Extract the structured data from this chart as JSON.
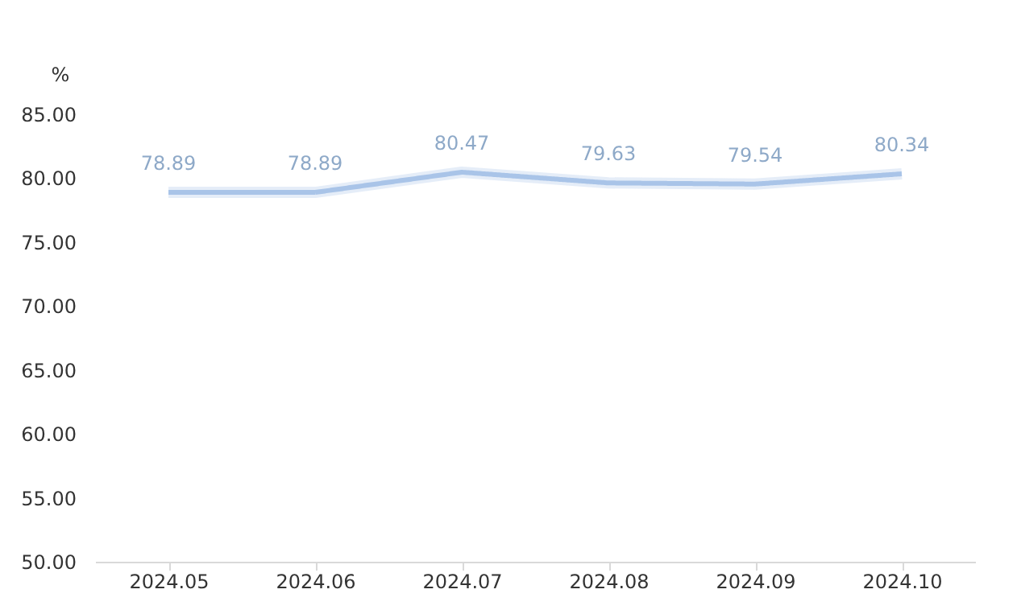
{
  "chart_data": {
    "type": "line",
    "ylabel": "%",
    "categories": [
      "2024.05",
      "2024.06",
      "2024.07",
      "2024.08",
      "2024.09",
      "2024.10"
    ],
    "series": [
      {
        "color": "#a9c4e8",
        "values": [
          78.89,
          78.89,
          80.47,
          79.63,
          79.54,
          80.34
        ]
      }
    ],
    "ylim": [
      50,
      85
    ],
    "yticks": [
      {
        "value": 50,
        "label": "50.00"
      },
      {
        "value": 55,
        "label": "55.00"
      },
      {
        "value": 60,
        "label": "60.00"
      },
      {
        "value": 65,
        "label": "65.00"
      },
      {
        "value": 70,
        "label": "70.00"
      },
      {
        "value": 75,
        "label": "75.00"
      },
      {
        "value": 80,
        "label": "80.00"
      },
      {
        "value": 85,
        "label": "85.00"
      }
    ],
    "data_labels": true,
    "grid": false,
    "marker": "none",
    "line_style": "solid"
  }
}
